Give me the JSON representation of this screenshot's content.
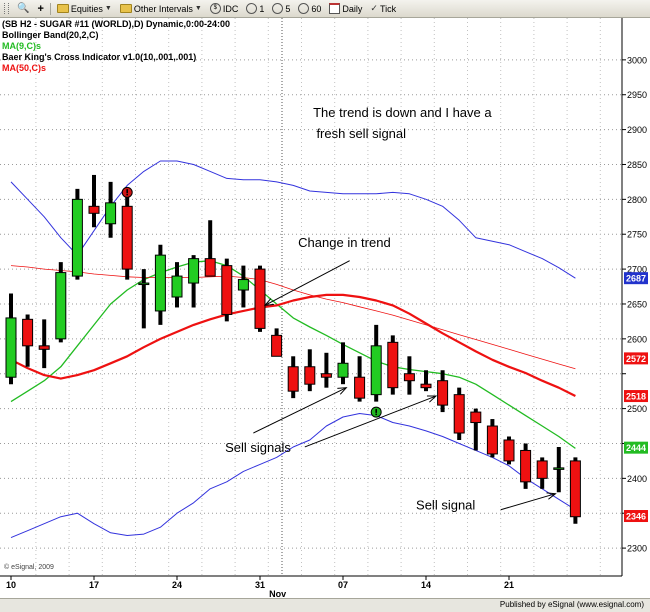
{
  "toolbar": {
    "buttons": [
      {
        "label": "Equities"
      },
      {
        "label": "Other Intervals"
      },
      {
        "label": "IDC"
      },
      {
        "label": "1"
      },
      {
        "label": "5"
      },
      {
        "label": "60"
      },
      {
        "label": "Daily"
      },
      {
        "label": "Tick"
      }
    ]
  },
  "legend": {
    "symbol_line": "(SB H2 - SUGAR #11 (WORLD),D) Dynamic,0:00-24:00",
    "bollinger": "Bollinger Band(20,2,C)",
    "ma9": "MA(9,C)s",
    "baer": "Baer King's Cross Indicator v1.0(10,.001,.001)",
    "ma50": "MA(50,C)s"
  },
  "colors": {
    "bollinger": "#3333dd",
    "ma9": "#22bb22",
    "ma50": "#ee1111",
    "candle_up": "#22cc22",
    "candle_down": "#ee1111",
    "annotation_arrow": "#000000"
  },
  "copyright": "© eSignal, 2009",
  "footer": "Published by eSignal (www.esignal.com)",
  "chart_data": {
    "type": "candlestick",
    "ylim": [
      2260,
      3060
    ],
    "y_ticks": [
      2300,
      2350,
      2400,
      2450,
      2500,
      2550,
      2600,
      2650,
      2700,
      2750,
      2800,
      2850,
      2900,
      2950,
      3000
    ],
    "y_tick_labels": [
      "2300",
      "",
      "2400",
      "",
      "2500",
      "",
      "2600",
      "2650",
      "2700",
      "2750",
      "2800",
      "2850",
      "2900",
      "2950",
      "3000"
    ],
    "x_ticks": [
      {
        "bar": 0,
        "label": "10"
      },
      {
        "bar": 5,
        "label": "17"
      },
      {
        "bar": 10,
        "label": "24"
      },
      {
        "bar": 15,
        "label": "31"
      },
      {
        "bar": 20,
        "label": "07"
      },
      {
        "bar": 25,
        "label": "14"
      },
      {
        "bar": 30,
        "label": "21"
      }
    ],
    "month_label": {
      "bar": 16,
      "label": "Nov"
    },
    "grid": true,
    "candles": [
      {
        "o": 2545,
        "h": 2665,
        "l": 2535,
        "c": 2630
      },
      {
        "o": 2628,
        "h": 2635,
        "l": 2560,
        "c": 2590
      },
      {
        "o": 2590,
        "h": 2628,
        "l": 2558,
        "c": 2585
      },
      {
        "o": 2600,
        "h": 2710,
        "l": 2595,
        "c": 2695
      },
      {
        "o": 2690,
        "h": 2815,
        "l": 2685,
        "c": 2800
      },
      {
        "o": 2790,
        "h": 2835,
        "l": 2760,
        "c": 2780
      },
      {
        "o": 2765,
        "h": 2825,
        "l": 2745,
        "c": 2795
      },
      {
        "o": 2790,
        "h": 2815,
        "l": 2685,
        "c": 2700
      },
      {
        "o": 2680,
        "h": 2700,
        "l": 2615,
        "c": 2680
      },
      {
        "o": 2640,
        "h": 2735,
        "l": 2620,
        "c": 2720
      },
      {
        "o": 2660,
        "h": 2710,
        "l": 2645,
        "c": 2690
      },
      {
        "o": 2680,
        "h": 2720,
        "l": 2645,
        "c": 2715
      },
      {
        "o": 2715,
        "h": 2770,
        "l": 2690,
        "c": 2690
      },
      {
        "o": 2705,
        "h": 2715,
        "l": 2625,
        "c": 2635
      },
      {
        "o": 2670,
        "h": 2705,
        "l": 2645,
        "c": 2685
      },
      {
        "o": 2700,
        "h": 2705,
        "l": 2610,
        "c": 2615
      },
      {
        "o": 2605,
        "h": 2615,
        "l": 2575,
        "c": 2575
      },
      {
        "o": 2560,
        "h": 2575,
        "l": 2515,
        "c": 2525
      },
      {
        "o": 2560,
        "h": 2585,
        "l": 2525,
        "c": 2535
      },
      {
        "o": 2550,
        "h": 2580,
        "l": 2530,
        "c": 2545
      },
      {
        "o": 2545,
        "h": 2595,
        "l": 2535,
        "c": 2565
      },
      {
        "o": 2545,
        "h": 2575,
        "l": 2510,
        "c": 2515
      },
      {
        "o": 2520,
        "h": 2620,
        "l": 2510,
        "c": 2590
      },
      {
        "o": 2595,
        "h": 2605,
        "l": 2520,
        "c": 2530
      },
      {
        "o": 2550,
        "h": 2575,
        "l": 2520,
        "c": 2540
      },
      {
        "o": 2535,
        "h": 2555,
        "l": 2525,
        "c": 2530
      },
      {
        "o": 2540,
        "h": 2555,
        "l": 2495,
        "c": 2505
      },
      {
        "o": 2520,
        "h": 2530,
        "l": 2455,
        "c": 2465
      },
      {
        "o": 2495,
        "h": 2500,
        "l": 2440,
        "c": 2480
      },
      {
        "o": 2475,
        "h": 2485,
        "l": 2430,
        "c": 2435
      },
      {
        "o": 2455,
        "h": 2460,
        "l": 2420,
        "c": 2425
      },
      {
        "o": 2440,
        "h": 2450,
        "l": 2385,
        "c": 2395
      },
      {
        "o": 2425,
        "h": 2430,
        "l": 2385,
        "c": 2400
      },
      {
        "o": 2415,
        "h": 2445,
        "l": 2380,
        "c": 2415
      },
      {
        "o": 2425,
        "h": 2430,
        "l": 2335,
        "c": 2345
      }
    ],
    "series": [
      {
        "key": "bollinger_upper",
        "values": [
          2825,
          2800,
          2775,
          2745,
          2720,
          2755,
          2790,
          2820,
          2840,
          2855,
          2855,
          2850,
          2840,
          2830,
          2828,
          2828,
          2825,
          2820,
          2812,
          2810,
          2808,
          2808,
          2808,
          2810,
          2808,
          2800,
          2790,
          2770,
          2745,
          2740,
          2735,
          2725,
          2715,
          2702,
          2687
        ]
      },
      {
        "key": "bollinger_lower",
        "values": [
          2315,
          2325,
          2335,
          2345,
          2350,
          2335,
          2322,
          2318,
          2320,
          2330,
          2350,
          2365,
          2385,
          2395,
          2410,
          2420,
          2430,
          2445,
          2455,
          2475,
          2488,
          2493,
          2490,
          2480,
          2475,
          2468,
          2460,
          2450,
          2440,
          2430,
          2418,
          2400,
          2385,
          2370,
          2355
        ]
      },
      {
        "key": "ma9",
        "values": [
          2510,
          2525,
          2540,
          2560,
          2590,
          2620,
          2650,
          2670,
          2685,
          2695,
          2703,
          2710,
          2712,
          2705,
          2690,
          2670,
          2650,
          2630,
          2617,
          2605,
          2592,
          2580,
          2568,
          2560,
          2556,
          2553,
          2550,
          2545,
          2535,
          2520,
          2505,
          2490,
          2475,
          2460,
          2443
        ]
      },
      {
        "key": "ma50",
        "values": [
          2570,
          2558,
          2548,
          2543,
          2548,
          2555,
          2565,
          2575,
          2588,
          2600,
          2610,
          2620,
          2628,
          2635,
          2640,
          2645,
          2648,
          2655,
          2660,
          2663,
          2663,
          2660,
          2655,
          2648,
          2636,
          2622,
          2608,
          2595,
          2582,
          2570,
          2560,
          2551,
          2540,
          2530,
          2518
        ]
      },
      {
        "key": "baer_cross",
        "values": [
          2705,
          2703,
          2700,
          2698,
          2696,
          2693,
          2691,
          2689,
          2688,
          2688,
          2688,
          2688,
          2689,
          2690,
          2688,
          2685,
          2678,
          2670,
          2663,
          2657,
          2652,
          2646,
          2640,
          2634,
          2627,
          2620,
          2613,
          2606,
          2599,
          2592,
          2585,
          2578,
          2571,
          2564,
          2557
        ]
      }
    ],
    "signals": [
      {
        "bar": 7,
        "value": 2810,
        "kind": "sell"
      },
      {
        "bar": 22,
        "value": 2495,
        "kind": "buy"
      }
    ],
    "price_tags": [
      {
        "value": 2687,
        "text": "2687",
        "color": "#2233cc"
      },
      {
        "value": 2572,
        "text": "2572",
        "color": "#ee1111"
      },
      {
        "value": 2518,
        "text": "2518",
        "color": "#ee1111"
      },
      {
        "value": 2444,
        "text": "2444",
        "color": "#22bb22"
      },
      {
        "value": 2346,
        "text": "2346",
        "color": "#ee1111"
      }
    ],
    "annotations": [
      {
        "text": "The trend is down and I have a",
        "bar": 18.2,
        "value": 2918
      },
      {
        "text": "fresh sell signal",
        "bar": 18.4,
        "value": 2888
      },
      {
        "text": "Change in trend",
        "bar": 17.3,
        "value": 2732
      },
      {
        "text": "Sell signals",
        "bar": 12.9,
        "value": 2438
      },
      {
        "text": "Sell signal",
        "bar": 24.4,
        "value": 2355
      }
    ],
    "arrows": [
      {
        "from_bar": 20.4,
        "from_value": 2712,
        "to_bar": 15.3,
        "to_value": 2648
      },
      {
        "from_bar": 14.6,
        "from_value": 2465,
        "to_bar": 20.2,
        "to_value": 2530
      },
      {
        "from_bar": 17.7,
        "from_value": 2445,
        "to_bar": 25.6,
        "to_value": 2518
      },
      {
        "from_bar": 29.5,
        "from_value": 2355,
        "to_bar": 32.8,
        "to_value": 2378
      }
    ]
  }
}
